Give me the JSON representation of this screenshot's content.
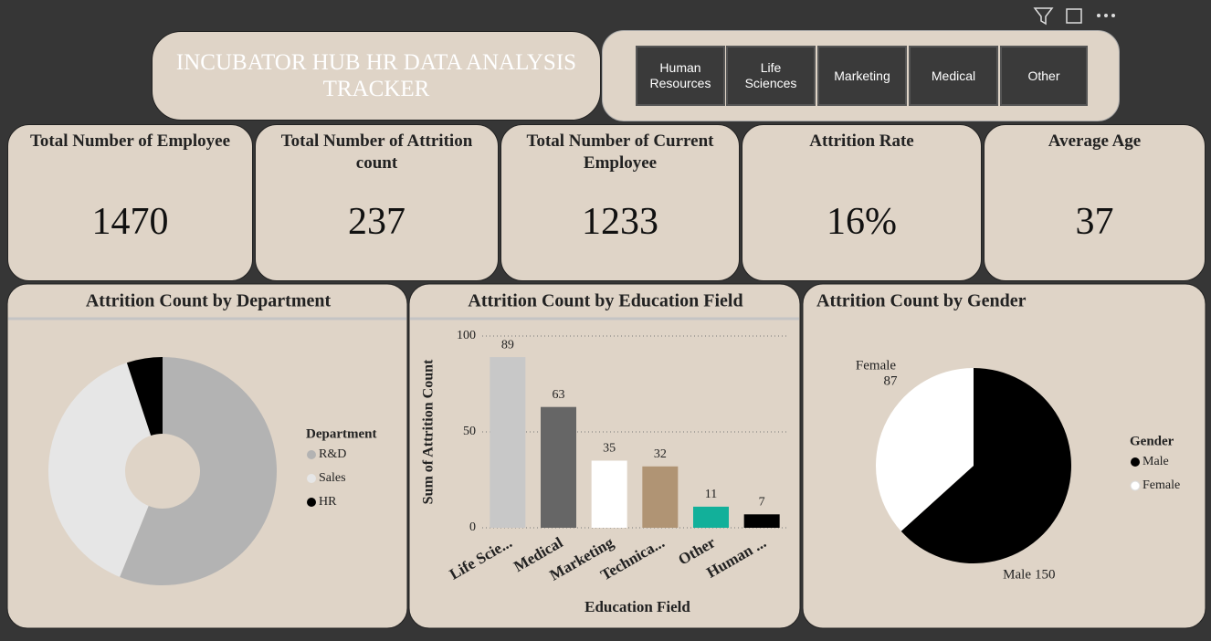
{
  "header": {
    "title": "INCUBATOR HUB HR DATA ANALYSIS TRACKER"
  },
  "slicer": {
    "options": [
      "Human Resources",
      "Life Sciences",
      "Marketing",
      "Medical",
      "Other"
    ]
  },
  "cards": [
    {
      "label": "Total Number of Employee",
      "value": 1470
    },
    {
      "label": "Total Number of Attrition count",
      "value": 237
    },
    {
      "label": "Total Number of Current Employee",
      "value": 1233
    },
    {
      "label": "Attrition Rate",
      "value": "16%"
    },
    {
      "label": "Average Age",
      "value": 37
    }
  ],
  "chart_data": [
    {
      "type": "donut",
      "title": "Attrition Count by Department",
      "legend_title": "Department",
      "categories": [
        "R&D",
        "Sales",
        "HR"
      ],
      "values": [
        133,
        92,
        12
      ],
      "colors": [
        "#b3b3b3",
        "#e6e6e6",
        "#000000"
      ],
      "legend": "right"
    },
    {
      "type": "bar",
      "title": "Attrition Count by Education Field",
      "xlabel": "Education Field",
      "ylabel": "Sum of Attrition Count",
      "categories": [
        "Life Scie...",
        "Medical",
        "Marketing",
        "Technica...",
        "Other",
        "Human ..."
      ],
      "values": [
        89,
        63,
        35,
        32,
        11,
        7
      ],
      "colors": [
        "#c8c8c8",
        "#666666",
        "#ffffff",
        "#b09474",
        "#12b09a",
        "#000000"
      ],
      "ylim": [
        0,
        100
      ],
      "yticks": [
        0,
        50,
        100
      ],
      "grid": true
    },
    {
      "type": "pie",
      "title": "Attrition Count by Gender",
      "legend_title": "Gender",
      "categories": [
        "Male",
        "Female"
      ],
      "values": [
        150,
        87
      ],
      "colors": [
        "#000000",
        "#ffffff"
      ],
      "legend": "right"
    }
  ]
}
